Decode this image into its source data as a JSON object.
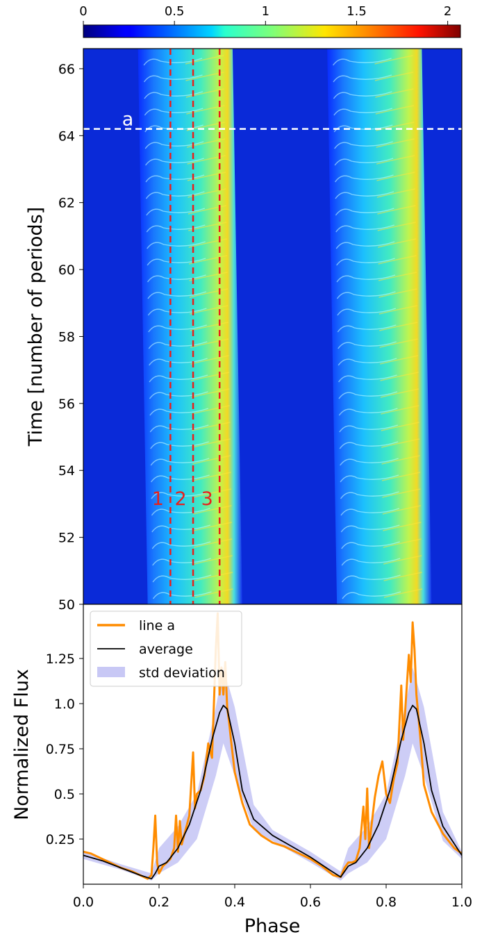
{
  "chart_data": [
    {
      "type": "colorbar",
      "ticks": [
        "0",
        "0.5",
        "1",
        "1.5",
        "2"
      ],
      "tick_values": [
        0,
        0.5,
        1,
        1.5,
        2
      ],
      "range": [
        0,
        2.07
      ],
      "colormap": "jet"
    },
    {
      "type": "heatmap",
      "xlabel": "",
      "ylabel": "Time [number of periods]",
      "xlim": [
        0,
        1
      ],
      "ylim": [
        50,
        66.6
      ],
      "yticks": [
        "50",
        "52",
        "54",
        "56",
        "58",
        "60",
        "62",
        "64",
        "66"
      ],
      "ytick_values": [
        50,
        52,
        54,
        56,
        58,
        60,
        62,
        64,
        66
      ],
      "bands": [
        {
          "phase_start": 0.17,
          "phase_peak": 0.37,
          "phase_end": 0.42
        },
        {
          "phase_start": 0.67,
          "phase_peak": 0.87,
          "phase_end": 0.92
        }
      ],
      "vertical_lines": [
        {
          "label": "1",
          "phase": 0.23,
          "color": "#e8201c"
        },
        {
          "label": "2",
          "phase": 0.29,
          "color": "#e8201c"
        },
        {
          "label": "3",
          "phase": 0.36,
          "color": "#e8201c"
        }
      ],
      "horizontal_line": {
        "label": "a",
        "time": 64.2,
        "color": "#ffffff"
      }
    },
    {
      "type": "line",
      "xlabel": "Phase",
      "ylabel": "Normalized Flux",
      "xlim": [
        0,
        1
      ],
      "ylim": [
        0,
        1.55
      ],
      "xticks": [
        "0.0",
        "0.2",
        "0.4",
        "0.6",
        "0.8",
        "1.0"
      ],
      "xtick_values": [
        0,
        0.2,
        0.4,
        0.6,
        0.8,
        1.0
      ],
      "yticks": [
        "0.25",
        "0.5",
        "0.75",
        "1.0",
        "1.25"
      ],
      "ytick_values": [
        0.25,
        0.5,
        0.75,
        1.0,
        1.25
      ],
      "legend": {
        "placement": "top-left",
        "entries": [
          "line a",
          "average",
          "std deviation"
        ]
      },
      "series": [
        {
          "name": "average",
          "color": "#000000",
          "x": [
            0.0,
            0.05,
            0.1,
            0.15,
            0.18,
            0.19,
            0.2,
            0.22,
            0.25,
            0.28,
            0.31,
            0.34,
            0.36,
            0.37,
            0.38,
            0.4,
            0.42,
            0.45,
            0.5,
            0.55,
            0.6,
            0.65,
            0.68,
            0.69,
            0.7,
            0.72,
            0.75,
            0.78,
            0.81,
            0.84,
            0.86,
            0.87,
            0.88,
            0.9,
            0.92,
            0.95,
            1.0
          ],
          "y": [
            0.16,
            0.13,
            0.09,
            0.05,
            0.03,
            0.06,
            0.1,
            0.12,
            0.2,
            0.33,
            0.52,
            0.8,
            0.95,
            0.99,
            0.97,
            0.78,
            0.52,
            0.36,
            0.27,
            0.21,
            0.15,
            0.08,
            0.04,
            0.07,
            0.1,
            0.12,
            0.2,
            0.33,
            0.52,
            0.8,
            0.95,
            0.99,
            0.97,
            0.78,
            0.52,
            0.32,
            0.16
          ]
        },
        {
          "name": "std deviation",
          "color": "#c8c8f5",
          "x": [
            0.0,
            0.1,
            0.18,
            0.2,
            0.25,
            0.3,
            0.35,
            0.37,
            0.4,
            0.45,
            0.5,
            0.6,
            0.68,
            0.7,
            0.75,
            0.8,
            0.85,
            0.87,
            0.9,
            0.95,
            1.0
          ],
          "lower": [
            0.14,
            0.08,
            0.02,
            0.06,
            0.12,
            0.25,
            0.6,
            0.78,
            0.6,
            0.3,
            0.24,
            0.12,
            0.02,
            0.06,
            0.12,
            0.25,
            0.6,
            0.78,
            0.6,
            0.24,
            0.14
          ],
          "upper": [
            0.18,
            0.11,
            0.06,
            0.2,
            0.32,
            0.5,
            0.98,
            1.2,
            0.98,
            0.44,
            0.3,
            0.18,
            0.07,
            0.2,
            0.32,
            0.5,
            0.98,
            1.2,
            0.98,
            0.4,
            0.18
          ]
        },
        {
          "name": "line a",
          "color": "#ff8c00",
          "x": [
            0.0,
            0.02,
            0.05,
            0.08,
            0.1,
            0.13,
            0.15,
            0.17,
            0.18,
            0.185,
            0.19,
            0.195,
            0.2,
            0.21,
            0.22,
            0.23,
            0.24,
            0.245,
            0.25,
            0.255,
            0.26,
            0.27,
            0.28,
            0.29,
            0.295,
            0.3,
            0.31,
            0.32,
            0.33,
            0.34,
            0.345,
            0.35,
            0.355,
            0.36,
            0.365,
            0.37,
            0.375,
            0.38,
            0.385,
            0.39,
            0.4,
            0.42,
            0.44,
            0.47,
            0.5,
            0.53,
            0.56,
            0.6,
            0.63,
            0.66,
            0.68,
            0.69,
            0.7,
            0.71,
            0.72,
            0.73,
            0.74,
            0.745,
            0.75,
            0.755,
            0.76,
            0.77,
            0.78,
            0.79,
            0.8,
            0.81,
            0.82,
            0.83,
            0.84,
            0.845,
            0.85,
            0.86,
            0.865,
            0.87,
            0.875,
            0.88,
            0.89,
            0.9,
            0.92,
            0.95,
            0.98,
            1.0
          ],
          "y": [
            0.18,
            0.17,
            0.14,
            0.11,
            0.09,
            0.07,
            0.05,
            0.03,
            0.05,
            0.2,
            0.38,
            0.12,
            0.06,
            0.1,
            0.12,
            0.14,
            0.2,
            0.38,
            0.18,
            0.35,
            0.22,
            0.3,
            0.38,
            0.73,
            0.42,
            0.5,
            0.52,
            0.6,
            0.78,
            0.7,
            1.0,
            1.3,
            1.5,
            1.05,
            1.2,
            1.05,
            1.23,
            0.98,
            0.9,
            0.8,
            0.62,
            0.45,
            0.33,
            0.27,
            0.23,
            0.21,
            0.18,
            0.14,
            0.1,
            0.05,
            0.04,
            0.09,
            0.12,
            0.12,
            0.13,
            0.2,
            0.43,
            0.25,
            0.53,
            0.2,
            0.3,
            0.48,
            0.6,
            0.68,
            0.5,
            0.45,
            0.58,
            0.67,
            1.1,
            0.8,
            0.95,
            1.27,
            1.12,
            1.45,
            1.3,
            1.05,
            0.82,
            0.55,
            0.4,
            0.28,
            0.2,
            0.17
          ]
        }
      ]
    }
  ]
}
